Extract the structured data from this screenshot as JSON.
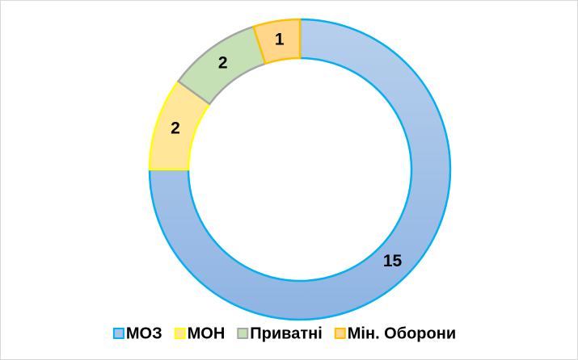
{
  "chart_data": {
    "type": "donut",
    "categories": [
      "МОЗ",
      "МОН",
      "Приватні",
      "Мін. Оборони"
    ],
    "values": [
      15,
      2,
      2,
      1
    ],
    "colors": [
      "#a4c3e8",
      "#ffe699",
      "#c5e0b4",
      "#ffd68a"
    ],
    "border_colors": [
      "#00b0f0",
      "#ffff00",
      "#a5a5a5",
      "#ffc000"
    ],
    "legend": "bottom"
  }
}
